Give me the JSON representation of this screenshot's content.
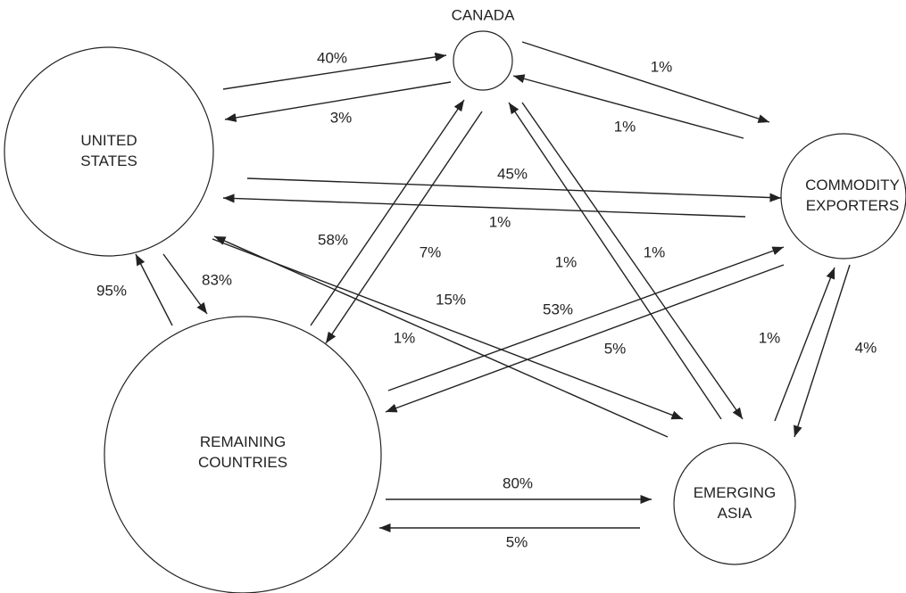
{
  "nodes": [
    {
      "lines": [
        "CANADA"
      ]
    },
    {
      "lines": [
        "UNITED",
        "STATES"
      ]
    },
    {
      "lines": [
        "COMMODITY",
        "EXPORTERS"
      ]
    },
    {
      "lines": [
        "REMAINING",
        "COUNTRIES"
      ]
    },
    {
      "lines": [
        "EMERGING",
        "ASIA"
      ]
    }
  ],
  "edges": [
    {
      "label": "40%"
    },
    {
      "label": "3%"
    },
    {
      "label": "1%"
    },
    {
      "label": "1%"
    },
    {
      "label": "45%"
    },
    {
      "label": "1%"
    },
    {
      "label": "58%"
    },
    {
      "label": "7%"
    },
    {
      "label": "1%"
    },
    {
      "label": "1%"
    },
    {
      "label": "95%"
    },
    {
      "label": "83%"
    },
    {
      "label": "15%"
    },
    {
      "label": "1%"
    },
    {
      "label": "53%"
    },
    {
      "label": "5%"
    },
    {
      "label": "1%"
    },
    {
      "label": "4%"
    },
    {
      "label": "80%"
    },
    {
      "label": "5%"
    }
  ]
}
